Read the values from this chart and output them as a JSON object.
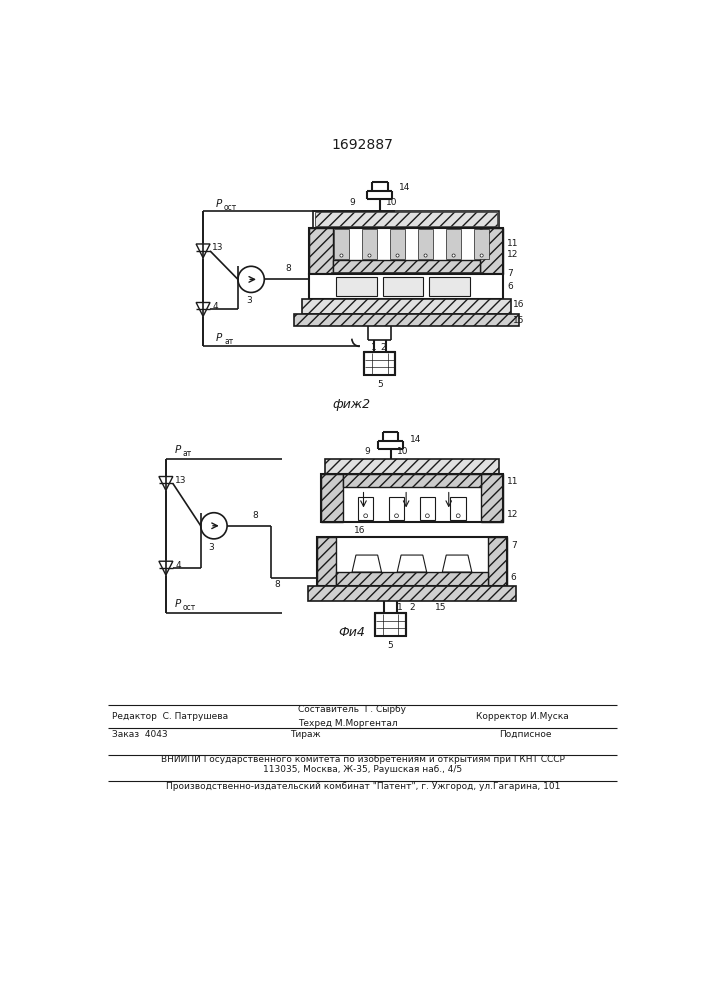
{
  "patent_number": "1692887",
  "fig2_label": "фиж2",
  "fig4_label": "Фи4",
  "bg_color": "#ffffff",
  "line_color": "#1a1a1a",
  "text_color": "#1a1a1a",
  "editor_left": "Редактор  С. Патрушева",
  "editor_mid1": "Составитель  Г. Сырбу",
  "editor_mid2": "Техред М.Моргентал",
  "editor_right": "Корректор И.Муска",
  "order": "Заказ  4043",
  "tirazh": "Тираж",
  "podpisnoe": "Подписное",
  "vniiipi1": "ВНИИПИ Государственного комитета по изобретениям и открытиям при ГКНТ СССР",
  "vniiipi2": "113035, Москва, Ж-35, Раушская наб., 4/5",
  "publisher": "Производственно-издательский комбинат \"Патент\", г. Ужгород, ул.Гагарина, 101"
}
